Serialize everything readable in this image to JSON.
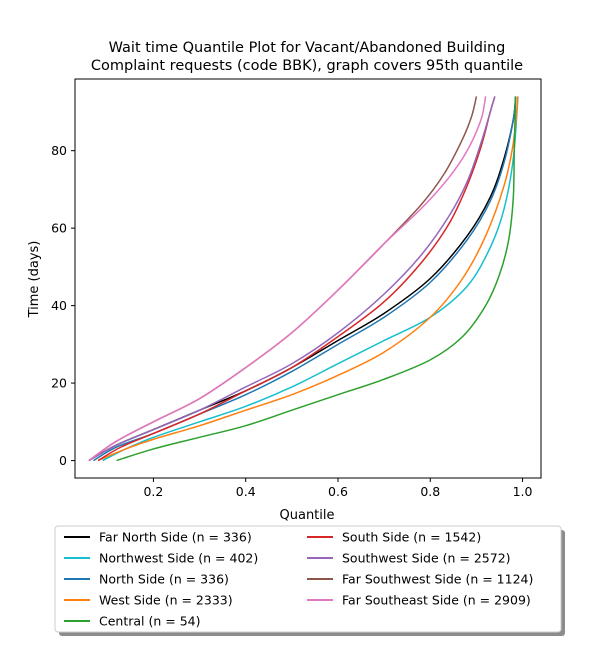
{
  "chart_data": {
    "type": "line",
    "title": [
      "Wait time Quantile Plot for Vacant/Abandoned Building",
      "Complaint  requests (code BBK), graph covers 95th quantile"
    ],
    "xlabel": "Quantile",
    "ylabel": "Time (days)",
    "xlim": [
      0.03,
      1.04
    ],
    "ylim": [
      -4.5,
      98.5
    ],
    "xticks": [
      0.2,
      0.4,
      0.6,
      0.8,
      1.0
    ],
    "xticklabels": [
      "0.2",
      "0.4",
      "0.6",
      "0.8",
      "1.0"
    ],
    "yticks": [
      0,
      20,
      40,
      60,
      80
    ],
    "yticklabels": [
      "0",
      "20",
      "40",
      "60",
      "80"
    ],
    "grid": false,
    "legend_position": "bottom-center",
    "series": [
      {
        "name": "Far North Side (n = 336)",
        "color": "#000000",
        "points": [
          [
            0.06,
            0
          ],
          [
            0.12,
            4
          ],
          [
            0.2,
            8
          ],
          [
            0.3,
            13
          ],
          [
            0.4,
            18
          ],
          [
            0.5,
            24
          ],
          [
            0.6,
            31
          ],
          [
            0.7,
            38
          ],
          [
            0.8,
            47
          ],
          [
            0.88,
            58
          ],
          [
            0.93,
            68
          ],
          [
            0.96,
            78
          ],
          [
            0.98,
            88
          ],
          [
            0.985,
            94
          ]
        ]
      },
      {
        "name": "Northwest Side (n = 402)",
        "color": "#17becf",
        "points": [
          [
            0.09,
            0
          ],
          [
            0.14,
            3
          ],
          [
            0.2,
            6
          ],
          [
            0.3,
            10
          ],
          [
            0.4,
            14
          ],
          [
            0.5,
            19
          ],
          [
            0.6,
            25
          ],
          [
            0.7,
            31
          ],
          [
            0.8,
            37
          ],
          [
            0.88,
            45
          ],
          [
            0.93,
            55
          ],
          [
            0.96,
            65
          ],
          [
            0.98,
            78
          ],
          [
            0.99,
            94
          ]
        ]
      },
      {
        "name": "North Side (n = 336)",
        "color": "#1f77b4",
        "points": [
          [
            0.07,
            0
          ],
          [
            0.12,
            3.5
          ],
          [
            0.2,
            7
          ],
          [
            0.3,
            12
          ],
          [
            0.4,
            17
          ],
          [
            0.5,
            23
          ],
          [
            0.6,
            30
          ],
          [
            0.7,
            37
          ],
          [
            0.8,
            46
          ],
          [
            0.88,
            57
          ],
          [
            0.93,
            67
          ],
          [
            0.96,
            77
          ],
          [
            0.98,
            88
          ],
          [
            0.985,
            94
          ]
        ]
      },
      {
        "name": "West Side (n = 2333)",
        "color": "#ff7f0e",
        "points": [
          [
            0.08,
            0
          ],
          [
            0.14,
            3
          ],
          [
            0.2,
            5.5
          ],
          [
            0.3,
            9
          ],
          [
            0.4,
            13
          ],
          [
            0.5,
            17
          ],
          [
            0.6,
            22
          ],
          [
            0.7,
            28
          ],
          [
            0.8,
            37
          ],
          [
            0.87,
            47
          ],
          [
            0.92,
            58
          ],
          [
            0.96,
            71
          ],
          [
            0.98,
            82
          ],
          [
            0.99,
            94
          ]
        ]
      },
      {
        "name": "Central (n = 54)",
        "color": "#2ca02c",
        "points": [
          [
            0.12,
            0
          ],
          [
            0.2,
            3
          ],
          [
            0.3,
            6
          ],
          [
            0.4,
            9
          ],
          [
            0.5,
            13
          ],
          [
            0.6,
            17
          ],
          [
            0.7,
            21
          ],
          [
            0.8,
            26
          ],
          [
            0.87,
            32
          ],
          [
            0.92,
            40
          ],
          [
            0.95,
            48
          ],
          [
            0.97,
            57
          ],
          [
            0.98,
            68
          ],
          [
            0.982,
            80
          ],
          [
            0.985,
            94
          ]
        ]
      },
      {
        "name": "South Side (n = 1542)",
        "color": "#d62728",
        "points": [
          [
            0.08,
            0
          ],
          [
            0.13,
            3.5
          ],
          [
            0.2,
            7
          ],
          [
            0.3,
            12
          ],
          [
            0.4,
            18
          ],
          [
            0.5,
            24
          ],
          [
            0.6,
            32
          ],
          [
            0.7,
            41
          ],
          [
            0.78,
            51
          ],
          [
            0.84,
            61
          ],
          [
            0.88,
            71
          ],
          [
            0.91,
            81
          ],
          [
            0.93,
            90
          ],
          [
            0.94,
            94
          ]
        ]
      },
      {
        "name": "Southwest Side (n = 2572)",
        "color": "#9467bd",
        "points": [
          [
            0.06,
            0
          ],
          [
            0.12,
            4
          ],
          [
            0.2,
            8
          ],
          [
            0.3,
            13
          ],
          [
            0.4,
            19
          ],
          [
            0.5,
            25
          ],
          [
            0.6,
            33
          ],
          [
            0.7,
            43
          ],
          [
            0.78,
            53
          ],
          [
            0.84,
            63
          ],
          [
            0.88,
            72
          ],
          [
            0.91,
            82
          ],
          [
            0.93,
            90
          ],
          [
            0.94,
            94
          ]
        ]
      },
      {
        "name": "Far Southwest Side (n = 1124)",
        "color": "#8c564b",
        "points": [
          [
            0.06,
            0
          ],
          [
            0.12,
            5
          ],
          [
            0.2,
            10
          ],
          [
            0.3,
            16
          ],
          [
            0.4,
            24
          ],
          [
            0.5,
            33
          ],
          [
            0.6,
            44
          ],
          [
            0.7,
            56
          ],
          [
            0.78,
            66
          ],
          [
            0.83,
            74
          ],
          [
            0.87,
            83
          ],
          [
            0.89,
            89
          ],
          [
            0.9,
            94
          ]
        ]
      },
      {
        "name": "Far Southeast Side (n = 2909)",
        "color": "#e377c2",
        "points": [
          [
            0.06,
            0
          ],
          [
            0.12,
            5
          ],
          [
            0.2,
            10
          ],
          [
            0.3,
            16
          ],
          [
            0.4,
            24
          ],
          [
            0.5,
            33
          ],
          [
            0.6,
            44
          ],
          [
            0.7,
            56
          ],
          [
            0.78,
            65
          ],
          [
            0.84,
            73
          ],
          [
            0.88,
            80
          ],
          [
            0.91,
            88
          ],
          [
            0.92,
            94
          ]
        ]
      }
    ]
  }
}
